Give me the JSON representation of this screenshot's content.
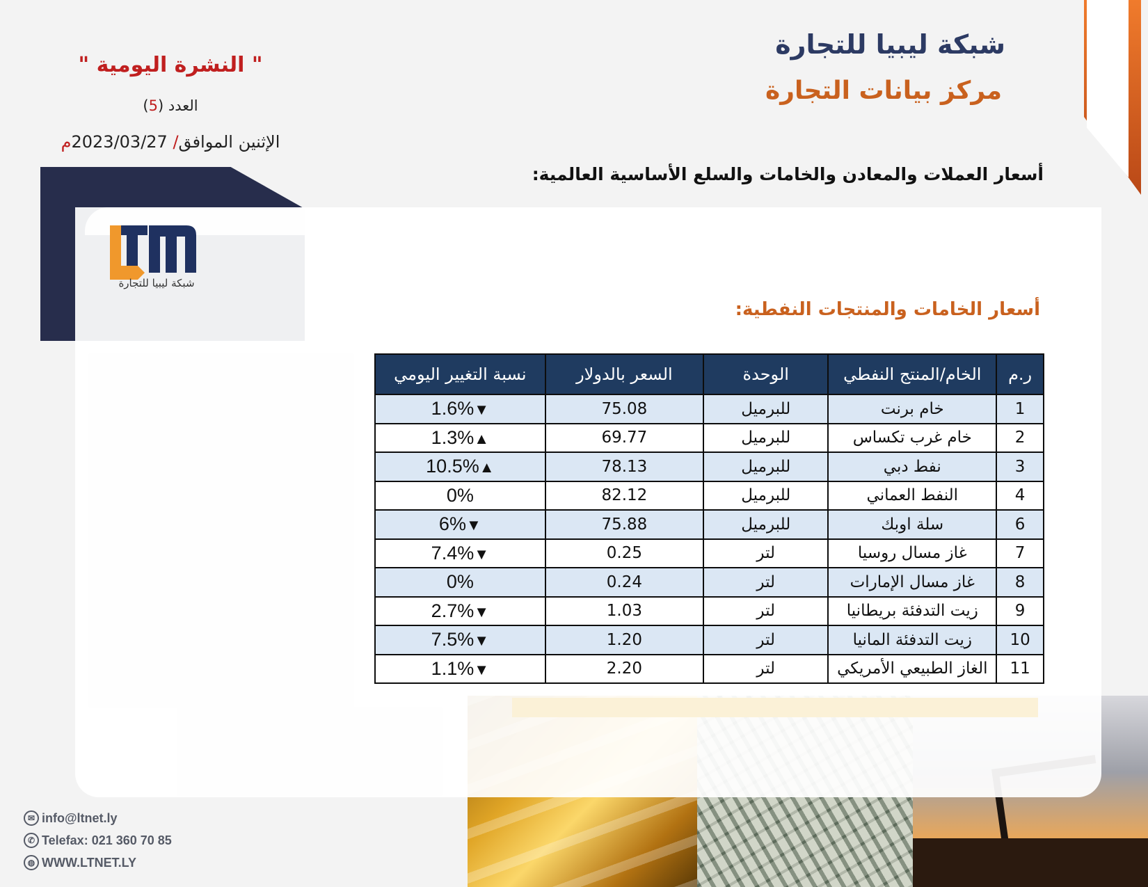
{
  "header": {
    "org_name": "شبكة ليبيا للتجارة",
    "org_subtitle": "مركز بيانات التجارة",
    "bulletin_title": "\" النشرة اليومية \"",
    "issue_label": "العدد (",
    "issue_number": "5",
    "issue_close": ")",
    "date_prefix": "الإثنين الموافق",
    "date_slash": "/",
    "date_value": "2023/03/27",
    "date_suffix": "م"
  },
  "section_heading": "أسعار العملات والمعادن والخامات والسلع الأساسية العالمية:",
  "logo": {
    "letters": "LTN",
    "caption": "شبكة ليبيا للتجارة"
  },
  "sub_heading": "أسعار الخامات والمنتجات النفطية:",
  "table": {
    "headers": {
      "no": "ر.م",
      "product": "الخام/المنتج النفطي",
      "unit": "الوحدة",
      "price": "السعر بالدولار",
      "change": "نسبة التغيير اليومي"
    },
    "rows": [
      {
        "no": "1",
        "product": "خام برنت",
        "unit": "للبرميل",
        "price": "75.08",
        "change": "1.6%",
        "direction": "down"
      },
      {
        "no": "2",
        "product": "خام غرب تكساس",
        "unit": "للبرميل",
        "price": "69.77",
        "change": "1.3%",
        "direction": "up"
      },
      {
        "no": "3",
        "product": "نفط دبي",
        "unit": "للبرميل",
        "price": "78.13",
        "change": "10.5%",
        "direction": "up"
      },
      {
        "no": "4",
        "product": "النفط العماني",
        "unit": "للبرميل",
        "price": "82.12",
        "change": "0%",
        "direction": "flat"
      },
      {
        "no": "6",
        "product": "سلة اوبك",
        "unit": "للبرميل",
        "price": "75.88",
        "change": "6%",
        "direction": "down"
      },
      {
        "no": "7",
        "product": "غاز مسال روسيا",
        "unit": "لتر",
        "price": "0.25",
        "change": "7.4%",
        "direction": "down"
      },
      {
        "no": "8",
        "product": "غاز مسال الإمارات",
        "unit": "لتر",
        "price": "0.24",
        "change": "0%",
        "direction": "flat"
      },
      {
        "no": "9",
        "product": "زيت التدفئة بريطانيا",
        "unit": "لتر",
        "price": "1.03",
        "change": "2.7%",
        "direction": "down"
      },
      {
        "no": "10",
        "product": "زيت التدفئة المانيا",
        "unit": "لتر",
        "price": "1.20",
        "change": "7.5%",
        "direction": "down"
      },
      {
        "no": "11",
        "product": "الغاز الطبيعي الأمريكي",
        "unit": "لتر",
        "price": "2.20",
        "change": "1.1%",
        "direction": "down"
      }
    ]
  },
  "contact": {
    "email": "info@ltnet.ly",
    "phone": "Telefax: 021 360 70 85",
    "website": "WWW.LTNET.LY"
  },
  "colors": {
    "navy": "#1f3b60",
    "orange": "#c9611e",
    "red": "#d11a1a",
    "green": "#18a84a"
  }
}
